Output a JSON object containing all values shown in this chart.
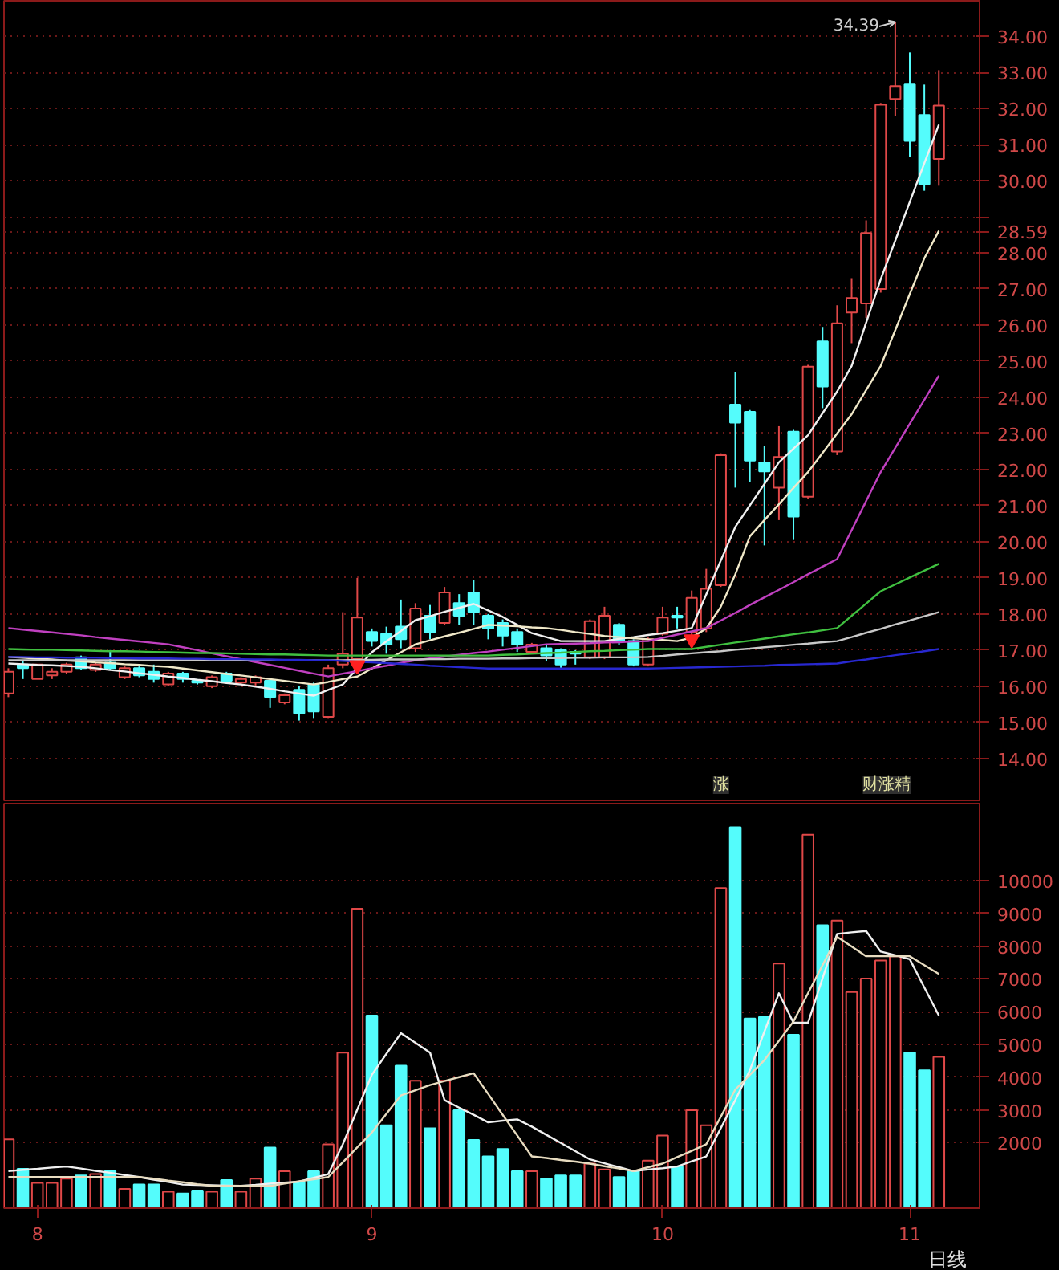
{
  "chart_data": [
    {
      "type": "candlestick",
      "categories": [
        null,
        null,
        "8",
        null,
        null,
        null,
        null,
        null,
        null,
        null,
        null,
        null,
        null,
        null,
        null,
        null,
        null,
        null,
        null,
        null,
        null,
        null,
        null,
        null,
        null,
        "9",
        null,
        null,
        null,
        null,
        null,
        null,
        null,
        null,
        null,
        null,
        null,
        null,
        null,
        null,
        null,
        null,
        null,
        null,
        null,
        "10",
        null,
        null,
        null,
        null,
        null,
        null,
        null,
        null,
        null,
        null,
        null,
        null,
        null,
        null,
        null,
        null,
        "11",
        null,
        null
      ],
      "ohlc": [
        [
          15.8,
          16.5,
          15.7,
          16.4
        ],
        [
          16.6,
          16.7,
          16.2,
          16.5
        ],
        [
          16.2,
          16.6,
          16.2,
          16.6
        ],
        [
          16.3,
          16.5,
          16.2,
          16.4
        ],
        [
          16.4,
          16.65,
          16.35,
          16.6
        ],
        [
          16.8,
          16.85,
          16.45,
          16.5
        ],
        [
          16.45,
          16.65,
          16.4,
          16.6
        ],
        [
          16.65,
          17.0,
          16.45,
          16.5
        ],
        [
          16.25,
          16.55,
          16.2,
          16.5
        ],
        [
          16.5,
          16.55,
          16.25,
          16.3
        ],
        [
          16.4,
          16.6,
          16.1,
          16.2
        ],
        [
          16.05,
          16.4,
          16.0,
          16.35
        ],
        [
          16.35,
          16.4,
          16.1,
          16.2
        ],
        [
          16.15,
          16.2,
          16.05,
          16.1
        ],
        [
          16.0,
          16.3,
          15.95,
          16.25
        ],
        [
          16.35,
          16.4,
          16.1,
          16.15
        ],
        [
          16.1,
          16.25,
          16.05,
          16.2
        ],
        [
          16.1,
          16.3,
          16.0,
          16.25
        ],
        [
          16.15,
          16.2,
          15.4,
          15.7
        ],
        [
          15.55,
          15.8,
          15.5,
          15.75
        ],
        [
          15.9,
          16.0,
          15.05,
          15.25
        ],
        [
          16.05,
          16.1,
          15.1,
          15.3
        ],
        [
          15.15,
          16.6,
          15.1,
          16.5
        ],
        [
          16.6,
          18.05,
          16.5,
          16.9
        ],
        [
          16.75,
          19.0,
          16.6,
          17.9
        ],
        [
          17.5,
          17.6,
          17.1,
          17.25
        ],
        [
          17.45,
          17.65,
          16.9,
          17.15
        ],
        [
          17.65,
          18.4,
          17.05,
          17.3
        ],
        [
          17.05,
          18.3,
          16.95,
          18.15
        ],
        [
          17.95,
          18.25,
          17.3,
          17.5
        ],
        [
          17.75,
          18.75,
          17.7,
          18.6
        ],
        [
          18.3,
          18.55,
          17.7,
          17.95
        ],
        [
          18.6,
          18.95,
          17.7,
          18.05
        ],
        [
          17.95,
          18.0,
          17.3,
          17.6
        ],
        [
          17.75,
          17.85,
          17.1,
          17.4
        ],
        [
          17.5,
          17.6,
          16.95,
          17.15
        ],
        [
          16.95,
          17.2,
          16.9,
          17.15
        ],
        [
          17.05,
          17.15,
          16.7,
          16.85
        ],
        [
          17.0,
          17.05,
          16.45,
          16.6
        ],
        [
          16.95,
          17.0,
          16.6,
          16.9
        ],
        [
          16.8,
          17.85,
          16.75,
          17.8
        ],
        [
          16.8,
          18.2,
          16.75,
          17.95
        ],
        [
          17.7,
          17.75,
          17.15,
          17.25
        ],
        [
          17.25,
          17.3,
          16.55,
          16.6
        ],
        [
          16.6,
          17.35,
          16.55,
          17.3
        ],
        [
          17.45,
          18.2,
          17.4,
          17.9
        ],
        [
          17.95,
          18.2,
          17.6,
          17.9
        ],
        [
          17.5,
          18.65,
          17.4,
          18.45
        ],
        [
          17.6,
          19.25,
          17.5,
          18.7
        ],
        [
          18.8,
          22.45,
          18.75,
          22.4
        ],
        [
          23.8,
          24.7,
          21.5,
          23.3
        ],
        [
          23.6,
          23.65,
          21.65,
          22.25
        ],
        [
          22.2,
          22.65,
          19.9,
          21.95
        ],
        [
          21.5,
          23.2,
          20.6,
          22.35
        ],
        [
          23.05,
          23.1,
          20.05,
          20.7
        ],
        [
          21.25,
          24.9,
          21.2,
          24.85
        ],
        [
          25.55,
          25.95,
          23.7,
          24.3
        ],
        [
          22.5,
          26.55,
          22.4,
          26.05
        ],
        [
          26.35,
          27.3,
          25.5,
          26.75
        ],
        [
          26.6,
          28.9,
          26.2,
          28.55
        ],
        [
          27.0,
          32.15,
          26.9,
          32.1
        ],
        [
          32.26,
          34.39,
          31.79,
          32.62
        ],
        [
          32.66,
          33.55,
          30.66,
          31.1
        ],
        [
          31.82,
          32.66,
          29.72,
          29.9
        ],
        [
          30.6,
          33.06,
          29.86,
          32.08
        ]
      ],
      "colors": [
        "#e04848",
        "#54fcfc",
        "#e04848",
        "#e04848",
        "#e04848",
        "#54fcfc",
        "#e04848",
        "#54fcfc",
        "#e04848",
        "#54fcfc",
        "#54fcfc",
        "#e04848",
        "#54fcfc",
        "#54fcfc",
        "#e04848",
        "#54fcfc",
        "#e04848",
        "#e04848",
        "#54fcfc",
        "#e04848",
        "#54fcfc",
        "#54fcfc",
        "#e04848",
        "#e04848",
        "#e04848",
        "#54fcfc",
        "#54fcfc",
        "#54fcfc",
        "#e04848",
        "#54fcfc",
        "#e04848",
        "#54fcfc",
        "#54fcfc",
        "#54fcfc",
        "#54fcfc",
        "#54fcfc",
        "#e04848",
        "#54fcfc",
        "#54fcfc",
        "#54fcfc",
        "#e04848",
        "#e04848",
        "#54fcfc",
        "#54fcfc",
        "#e04848",
        "#e04848",
        "#54fcfc",
        "#e04848",
        "#e04848",
        "#e04848",
        "#54fcfc",
        "#54fcfc",
        "#54fcfc",
        "#e04848",
        "#54fcfc",
        "#e04848",
        "#54fcfc",
        "#e04848",
        "#e04848",
        "#e04848",
        "#e04848",
        "#e04848",
        "#54fcfc",
        "#54fcfc",
        "#e04848"
      ],
      "series": [
        {
          "type": "line",
          "color": "#f0f0f0",
          "values": [
            16.63,
            16.61,
            16.59,
            16.58,
            16.56,
            16.54,
            16.5,
            16.45,
            16.41,
            16.36,
            16.32,
            16.27,
            16.23,
            16.18,
            16.14,
            16.09,
            16.05,
            15.99,
            15.93,
            15.86,
            15.8,
            15.74,
            15.9,
            16.05,
            16.5,
            16.94,
            17.24,
            17.53,
            17.83,
            17.94,
            18.06,
            18.17,
            18.28,
            18.1,
            17.92,
            17.7,
            17.47,
            17.36,
            17.25,
            17.25,
            17.25,
            17.25,
            17.31,
            17.36,
            17.42,
            17.47,
            17.54,
            17.61,
            18.54,
            19.48,
            20.41,
            21.01,
            21.6,
            22.2,
            22.58,
            22.95,
            23.56,
            24.16,
            24.87,
            26.07,
            27.27,
            28.34,
            29.41,
            30.48,
            31.55
          ]
        },
        {
          "type": "line",
          "color": "#f0e8c8",
          "values": [
            16.81,
            16.79,
            16.76,
            16.74,
            16.71,
            16.69,
            16.66,
            16.64,
            16.61,
            16.59,
            16.56,
            16.54,
            16.49,
            16.44,
            16.39,
            16.34,
            16.3,
            16.25,
            16.2,
            16.15,
            16.1,
            16.05,
            16.12,
            16.2,
            16.27,
            16.49,
            16.72,
            16.94,
            17.16,
            17.27,
            17.38,
            17.48,
            17.59,
            17.7,
            17.68,
            17.66,
            17.63,
            17.61,
            17.56,
            17.5,
            17.45,
            17.39,
            17.36,
            17.33,
            17.3,
            17.28,
            17.25,
            17.35,
            17.6,
            18.2,
            19.1,
            20.15,
            20.6,
            21.04,
            21.49,
            21.93,
            22.46,
            23.0,
            23.53,
            24.2,
            24.87,
            25.86,
            26.86,
            27.85,
            28.61
          ]
        },
        {
          "type": "line",
          "color": "#c040c0",
          "values": [
            17.61,
            17.57,
            17.53,
            17.49,
            17.45,
            17.41,
            17.36,
            17.32,
            17.28,
            17.24,
            17.2,
            17.16,
            17.08,
            17.0,
            16.91,
            16.83,
            16.75,
            16.67,
            16.59,
            16.51,
            16.43,
            16.35,
            16.27,
            16.35,
            16.42,
            16.5,
            16.57,
            16.65,
            16.72,
            16.77,
            16.82,
            16.87,
            16.92,
            16.96,
            17.01,
            17.06,
            17.11,
            17.16,
            17.17,
            17.18,
            17.19,
            17.21,
            17.22,
            17.24,
            17.25,
            17.34,
            17.43,
            17.52,
            17.61,
            17.82,
            18.03,
            18.25,
            18.46,
            18.67,
            18.88,
            19.1,
            19.31,
            19.52,
            20.32,
            21.13,
            21.93,
            22.6,
            23.27,
            23.93,
            24.6
          ]
        },
        {
          "type": "line",
          "color": "#40c040",
          "values": [
            17.03,
            17.02,
            17.01,
            17.01,
            17.0,
            16.99,
            16.98,
            16.97,
            16.97,
            16.96,
            16.95,
            16.94,
            16.93,
            16.92,
            16.92,
            16.91,
            16.9,
            16.89,
            16.88,
            16.88,
            16.87,
            16.86,
            16.85,
            16.85,
            16.85,
            16.85,
            16.85,
            16.85,
            16.85,
            16.85,
            16.85,
            16.85,
            16.85,
            16.85,
            16.87,
            16.88,
            16.9,
            16.92,
            16.93,
            16.95,
            16.97,
            16.98,
            17.0,
            17.01,
            17.03,
            17.03,
            17.03,
            17.03,
            17.09,
            17.15,
            17.21,
            17.26,
            17.32,
            17.38,
            17.44,
            17.49,
            17.55,
            17.61,
            17.95,
            18.29,
            18.63,
            18.82,
            19.01,
            19.2,
            19.39
          ]
        },
        {
          "type": "line",
          "color": "#c8c8c8",
          "values": [
            16.72,
            16.72,
            16.72,
            16.72,
            16.72,
            16.72,
            16.72,
            16.72,
            16.72,
            16.72,
            16.72,
            16.72,
            16.72,
            16.72,
            16.72,
            16.72,
            16.72,
            16.72,
            16.72,
            16.72,
            16.72,
            16.72,
            16.72,
            16.72,
            16.73,
            16.73,
            16.74,
            16.74,
            16.74,
            16.75,
            16.75,
            16.76,
            16.76,
            16.76,
            16.77,
            16.77,
            16.78,
            16.78,
            16.78,
            16.79,
            16.79,
            16.8,
            16.8,
            16.8,
            16.81,
            16.84,
            16.88,
            16.91,
            16.94,
            16.97,
            17.01,
            17.04,
            17.08,
            17.11,
            17.15,
            17.18,
            17.22,
            17.25,
            17.36,
            17.48,
            17.59,
            17.71,
            17.82,
            17.94,
            18.05
          ]
        },
        {
          "type": "line",
          "color": "#2828d0",
          "values": [
            16.81,
            16.81,
            16.8,
            16.8,
            16.79,
            16.79,
            16.79,
            16.78,
            16.78,
            16.77,
            16.77,
            16.77,
            16.76,
            16.76,
            16.75,
            16.75,
            16.75,
            16.74,
            16.74,
            16.73,
            16.73,
            16.72,
            16.72,
            16.7,
            16.68,
            16.66,
            16.64,
            16.62,
            16.6,
            16.57,
            16.55,
            16.53,
            16.51,
            16.49,
            16.49,
            16.49,
            16.49,
            16.49,
            16.49,
            16.49,
            16.49,
            16.49,
            16.49,
            16.49,
            16.49,
            16.5,
            16.51,
            16.52,
            16.53,
            16.54,
            16.55,
            16.56,
            16.57,
            16.59,
            16.6,
            16.61,
            16.62,
            16.63,
            16.69,
            16.74,
            16.8,
            16.86,
            16.91,
            16.97,
            17.03
          ]
        },
        {
          "type": "scatter",
          "marker": "triangle",
          "color": "#ff2020",
          "values": [
            null,
            null,
            null,
            null,
            null,
            null,
            null,
            null,
            null,
            null,
            null,
            null,
            null,
            null,
            null,
            null,
            null,
            null,
            null,
            null,
            null,
            null,
            null,
            null,
            16.58,
            null,
            null,
            null,
            null,
            null,
            null,
            null,
            null,
            null,
            null,
            null,
            null,
            null,
            null,
            null,
            null,
            null,
            null,
            null,
            null,
            null,
            null,
            17.3,
            null,
            null,
            null,
            null,
            null,
            null,
            null,
            null,
            null,
            null,
            null,
            null,
            null,
            null,
            null,
            null,
            null
          ]
        }
      ],
      "ylim": [
        12.84,
        34.98
      ],
      "yticks": [
        {
          "value": 14,
          "label": "14.00"
        },
        {
          "value": 15,
          "label": "15.00"
        },
        {
          "value": 16,
          "label": "16.00"
        },
        {
          "value": 17,
          "label": "17.00"
        },
        {
          "value": 18,
          "label": "18.00"
        },
        {
          "value": 19,
          "label": "19.00"
        },
        {
          "value": 20,
          "label": "20.00"
        },
        {
          "value": 21,
          "label": "21.00"
        },
        {
          "value": 22,
          "label": "22.00"
        },
        {
          "value": 23,
          "label": "23.00"
        },
        {
          "value": 24,
          "label": "24.00"
        },
        {
          "value": 25,
          "label": "25.00"
        },
        {
          "value": 26,
          "label": "26.00"
        },
        {
          "value": 27,
          "label": "27.00"
        },
        {
          "value": 28,
          "label": "28.00"
        },
        {
          "value": 28.59,
          "label": "28.59"
        },
        {
          "value": 29,
          "label": null
        },
        {
          "value": 30,
          "label": "30.00"
        },
        {
          "value": 31,
          "label": "31.00"
        },
        {
          "value": 32,
          "label": "32.00"
        },
        {
          "value": 33,
          "label": "33.00"
        },
        {
          "value": 34,
          "label": "34.00"
        }
      ],
      "tick_labels": "y",
      "grid": "y",
      "annotations": [
        "34.39",
        "涨",
        "财涨精"
      ]
    },
    {
      "type": "bar",
      "categories": [
        null,
        null,
        "8",
        null,
        null,
        null,
        null,
        null,
        null,
        null,
        null,
        null,
        null,
        null,
        null,
        null,
        null,
        null,
        null,
        null,
        null,
        null,
        null,
        null,
        null,
        "9",
        null,
        null,
        null,
        null,
        null,
        null,
        null,
        null,
        null,
        null,
        null,
        null,
        null,
        null,
        null,
        null,
        null,
        null,
        null,
        "10",
        null,
        null,
        null,
        null,
        null,
        null,
        null,
        null,
        null,
        null,
        null,
        null,
        null,
        null,
        null,
        null,
        "11",
        null,
        null
      ],
      "series": [
        {
          "type": "bar",
          "values": [
            2100,
            1200,
            770,
            770,
            900,
            1000,
            1040,
            1130,
            590,
            720,
            720,
            500,
            450,
            540,
            500,
            860,
            500,
            900,
            1850,
            1130,
            810,
            1130,
            1950,
            4750,
            9140,
            5880,
            2530,
            4350,
            3890,
            2440,
            3890,
            2990,
            2080,
            1580,
            1810,
            1130,
            1130,
            900,
            1000,
            1000,
            1360,
            1180,
            950,
            1130,
            1450,
            2220,
            1270,
            2990,
            2530,
            9770,
            11630,
            5790,
            5840,
            7470,
            5290,
            11400,
            8640,
            8780,
            6600,
            7010,
            7560,
            7690,
            4750,
            4210,
            4620
          ],
          "colors": [
            "#e04848",
            "#54fcfc",
            "#e04848",
            "#e04848",
            "#e04848",
            "#54fcfc",
            "#e04848",
            "#54fcfc",
            "#e04848",
            "#54fcfc",
            "#54fcfc",
            "#e04848",
            "#54fcfc",
            "#54fcfc",
            "#e04848",
            "#54fcfc",
            "#e04848",
            "#e04848",
            "#54fcfc",
            "#e04848",
            "#54fcfc",
            "#54fcfc",
            "#e04848",
            "#e04848",
            "#e04848",
            "#54fcfc",
            "#54fcfc",
            "#54fcfc",
            "#e04848",
            "#54fcfc",
            "#e04848",
            "#54fcfc",
            "#54fcfc",
            "#54fcfc",
            "#54fcfc",
            "#54fcfc",
            "#e04848",
            "#54fcfc",
            "#54fcfc",
            "#54fcfc",
            "#e04848",
            "#e04848",
            "#54fcfc",
            "#54fcfc",
            "#e04848",
            "#e04848",
            "#54fcfc",
            "#e04848",
            "#e04848",
            "#e04848",
            "#54fcfc",
            "#54fcfc",
            "#54fcfc",
            "#e04848",
            "#54fcfc",
            "#e04848",
            "#54fcfc",
            "#e04848",
            "#e04848",
            "#e04848",
            "#e04848",
            "#e04848",
            "#54fcfc",
            "#54fcfc",
            "#e04848"
          ]
        },
        {
          "type": "line",
          "color": "#f0f0f0",
          "values": [
            1130,
            1170,
            1200,
            1240,
            1270,
            1210,
            1140,
            1080,
            1010,
            950,
            870,
            800,
            720,
            710,
            700,
            690,
            680,
            710,
            750,
            780,
            810,
            930,
            1040,
            1950,
            3010,
            4070,
            4710,
            5340,
            5050,
            4750,
            3300,
            3070,
            2850,
            2620,
            2670,
            2710,
            2490,
            2240,
            1990,
            1740,
            1490,
            1370,
            1250,
            1130,
            1180,
            1220,
            1270,
            1430,
            1580,
            2440,
            3300,
            4210,
            5390,
            6560,
            5660,
            5660,
            7020,
            8370,
            8420,
            8460,
            7830,
            7720,
            7600,
            6740,
            5880
          ]
        },
        {
          "type": "line",
          "color": "#e8dcc0",
          "values": [
            950,
            950,
            950,
            950,
            950,
            950,
            950,
            950,
            950,
            950,
            900,
            840,
            790,
            730,
            680,
            680,
            680,
            680,
            680,
            750,
            820,
            880,
            950,
            1400,
            1860,
            2310,
            2880,
            3440,
            3600,
            3760,
            3880,
            4000,
            4120,
            3490,
            2850,
            2220,
            1580,
            1530,
            1470,
            1420,
            1360,
            1280,
            1210,
            1130,
            1250,
            1360,
            1560,
            1750,
            1950,
            2790,
            3620,
            4070,
            4520,
            5110,
            5700,
            6560,
            7420,
            8280,
            7990,
            7690,
            7690,
            7690,
            7690,
            7420,
            7150
          ]
        }
      ],
      "ylim": [
        0,
        12350
      ],
      "yticks": [
        2000,
        3000,
        4000,
        5000,
        6000,
        7000,
        8000,
        9000,
        10000
      ],
      "grid": "y",
      "annotations": [
        "日线"
      ]
    }
  ]
}
